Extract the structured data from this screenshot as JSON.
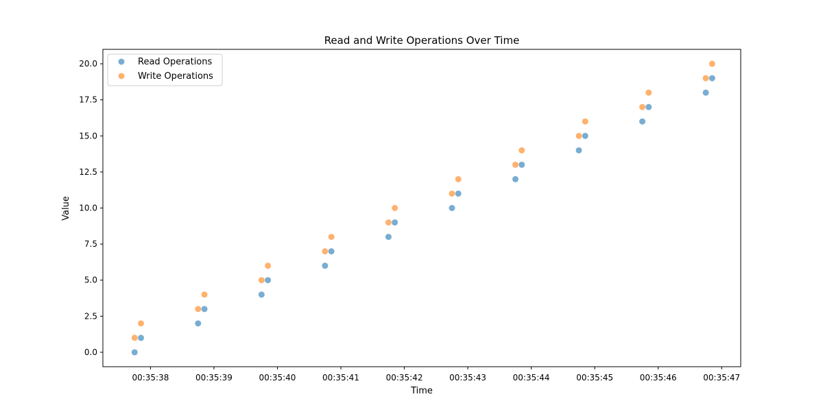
{
  "chart_data": {
    "type": "scatter",
    "title": "Read and Write Operations Over Time",
    "xlabel": "Time",
    "ylabel": "Value",
    "xlim": [
      "00:35:37.25",
      "00:35:47.30"
    ],
    "ylim": [
      -1.0,
      21.0
    ],
    "x_ticks": [
      "00:35:38",
      "00:35:39",
      "00:35:40",
      "00:35:41",
      "00:35:42",
      "00:35:43",
      "00:35:44",
      "00:35:45",
      "00:35:46",
      "00:35:47"
    ],
    "y_ticks": [
      "0.0",
      "2.5",
      "5.0",
      "7.5",
      "10.0",
      "12.5",
      "15.0",
      "17.5",
      "20.0"
    ],
    "grid": false,
    "legend_position": "top-left",
    "series": [
      {
        "name": "Read Operations",
        "color": "#1f77b4",
        "points": [
          {
            "x": "00:35:37.75",
            "y": 0
          },
          {
            "x": "00:35:37.85",
            "y": 1
          },
          {
            "x": "00:35:38.75",
            "y": 2
          },
          {
            "x": "00:35:38.85",
            "y": 3
          },
          {
            "x": "00:35:39.75",
            "y": 4
          },
          {
            "x": "00:35:39.85",
            "y": 5
          },
          {
            "x": "00:35:40.75",
            "y": 6
          },
          {
            "x": "00:35:40.85",
            "y": 7
          },
          {
            "x": "00:35:41.75",
            "y": 8
          },
          {
            "x": "00:35:41.85",
            "y": 9
          },
          {
            "x": "00:35:42.75",
            "y": 10
          },
          {
            "x": "00:35:42.85",
            "y": 11
          },
          {
            "x": "00:35:43.75",
            "y": 12
          },
          {
            "x": "00:35:43.85",
            "y": 13
          },
          {
            "x": "00:35:44.75",
            "y": 14
          },
          {
            "x": "00:35:44.85",
            "y": 15
          },
          {
            "x": "00:35:45.75",
            "y": 16
          },
          {
            "x": "00:35:45.85",
            "y": 17
          },
          {
            "x": "00:35:46.75",
            "y": 18
          },
          {
            "x": "00:35:46.85",
            "y": 19
          }
        ]
      },
      {
        "name": "Write Operations",
        "color": "#ff7f0e",
        "points": [
          {
            "x": "00:35:37.75",
            "y": 1
          },
          {
            "x": "00:35:37.85",
            "y": 2
          },
          {
            "x": "00:35:38.75",
            "y": 3
          },
          {
            "x": "00:35:38.85",
            "y": 4
          },
          {
            "x": "00:35:39.75",
            "y": 5
          },
          {
            "x": "00:35:39.85",
            "y": 6
          },
          {
            "x": "00:35:40.75",
            "y": 7
          },
          {
            "x": "00:35:40.85",
            "y": 8
          },
          {
            "x": "00:35:41.75",
            "y": 9
          },
          {
            "x": "00:35:41.85",
            "y": 10
          },
          {
            "x": "00:35:42.75",
            "y": 11
          },
          {
            "x": "00:35:42.85",
            "y": 12
          },
          {
            "x": "00:35:43.75",
            "y": 13
          },
          {
            "x": "00:35:43.85",
            "y": 14
          },
          {
            "x": "00:35:44.75",
            "y": 15
          },
          {
            "x": "00:35:44.85",
            "y": 16
          },
          {
            "x": "00:35:45.75",
            "y": 17
          },
          {
            "x": "00:35:45.85",
            "y": 18
          },
          {
            "x": "00:35:46.75",
            "y": 19
          },
          {
            "x": "00:35:46.85",
            "y": 20
          }
        ]
      }
    ]
  }
}
